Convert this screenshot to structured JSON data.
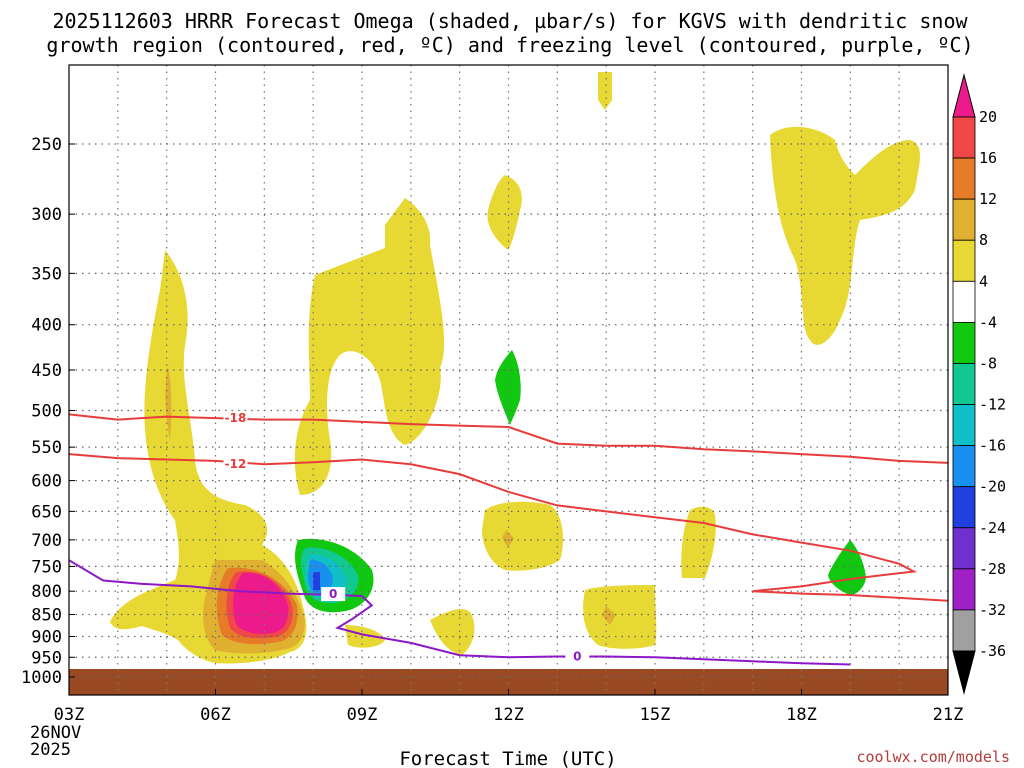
{
  "title": {
    "line1": "2025112603 HRRR Forecast Omega (shaded, µbar/s) for KGVS with dendritic snow",
    "line2": "growth region (contoured, red, ºC) and freezing level (contoured, purple, ºC)"
  },
  "credit": "coolwx.com/models",
  "colors": {
    "omega_4_8": "#e8d833",
    "omega_8_12": "#e0b030",
    "omega_12_16": "#e67c28",
    "omega_16_20": "#f04848",
    "omega_gt_20": "#ec1a8a",
    "omega_m4_m8": "#10c810",
    "omega_m8_m12": "#10c890",
    "omega_m12_m16": "#10c0c8",
    "omega_m16_m20": "#1890f0",
    "omega_m20_m24": "#2040e0",
    "omega_m24_m28": "#7030d0",
    "omega_m28_m32": "#a020c8",
    "omega_m32_m36": "#a0a0a0",
    "omega_lt_m36": "#000000",
    "dgz_contour": "#e83c3c",
    "freezing_contour": "#8c18c8",
    "ground": "#9a4a22"
  },
  "chart_data": {
    "type": "heatmap",
    "title": "2025112603 HRRR Forecast Omega (shaded, µbar/s) for KGVS with dendritic snow growth region (contoured, red, ºC) and freezing level (contoured, purple, ºC)",
    "xlabel": "Forecast Time (UTC)",
    "ylabel": "",
    "x_ticks": [
      "03Z",
      "06Z",
      "09Z",
      "12Z",
      "15Z",
      "18Z",
      "21Z"
    ],
    "x_start_label": [
      "03Z",
      "26NOV",
      "2025"
    ],
    "y_ticks": [
      250,
      300,
      350,
      400,
      450,
      500,
      550,
      600,
      650,
      700,
      750,
      800,
      850,
      900,
      950,
      1000
    ],
    "ylim": [
      1000,
      200
    ],
    "y_scale": "log-pressure",
    "grid": true,
    "colorbar_levels": [
      20,
      16,
      12,
      8,
      4,
      -4,
      -8,
      -12,
      -16,
      -20,
      -24,
      -28,
      -32,
      -36
    ],
    "contours": [
      {
        "name": "-18",
        "color": "red",
        "points": [
          [
            3,
            505
          ],
          [
            4,
            512
          ],
          [
            5,
            508
          ],
          [
            6,
            510
          ],
          [
            7,
            512
          ],
          [
            8,
            512
          ],
          [
            9,
            515
          ],
          [
            10,
            518
          ],
          [
            11,
            520
          ],
          [
            12,
            522
          ],
          [
            13,
            545
          ],
          [
            14,
            548
          ],
          [
            15,
            548
          ],
          [
            16,
            553
          ],
          [
            17,
            556
          ],
          [
            18,
            560
          ],
          [
            19,
            564
          ],
          [
            20,
            570
          ],
          [
            21,
            573
          ]
        ]
      },
      {
        "name": "-12",
        "color": "red",
        "points": [
          [
            3,
            560
          ],
          [
            4,
            566
          ],
          [
            5,
            568
          ],
          [
            6,
            570
          ],
          [
            7,
            575
          ],
          [
            8,
            572
          ],
          [
            9,
            568
          ],
          [
            10,
            575
          ],
          [
            11,
            590
          ],
          [
            12,
            618
          ],
          [
            13,
            640
          ],
          [
            14,
            650
          ],
          [
            15,
            660
          ],
          [
            16,
            670
          ],
          [
            17,
            690
          ],
          [
            18,
            705
          ],
          [
            19,
            720
          ],
          [
            20,
            745
          ],
          [
            20.3,
            760
          ],
          [
            19,
            775
          ],
          [
            18,
            790
          ],
          [
            17,
            800
          ],
          [
            18,
            805
          ],
          [
            19,
            808
          ],
          [
            21,
            820
          ]
        ]
      },
      {
        "name": "0",
        "color": "purple",
        "points": [
          [
            3,
            738
          ],
          [
            3.7,
            778
          ],
          [
            4.5,
            785
          ],
          [
            5.5,
            790
          ],
          [
            6.5,
            800
          ],
          [
            7.5,
            805
          ],
          [
            8.5,
            808
          ],
          [
            9,
            810
          ],
          [
            9.2,
            830
          ],
          [
            8.8,
            860
          ],
          [
            8.5,
            880
          ],
          [
            9,
            895
          ],
          [
            9.5,
            905
          ],
          [
            10,
            915
          ],
          [
            11,
            945
          ],
          [
            12,
            950
          ],
          [
            13,
            948
          ],
          [
            14,
            948
          ],
          [
            15,
            950
          ],
          [
            16,
            955
          ],
          [
            17,
            960
          ],
          [
            18,
            965
          ],
          [
            19,
            968
          ]
        ]
      }
    ],
    "regions": [
      {
        "level": "4 to 8",
        "hours": [
          3.8,
          6.5
        ],
        "pressure": [
          330,
          970
        ]
      },
      {
        "level": "8 to 12",
        "hours": [
          4.9,
          5.1
        ],
        "pressure": [
          450,
          530
        ]
      },
      {
        "level": "gt 20",
        "hours": [
          6.2,
          7.9
        ],
        "pressure": [
          740,
          880
        ]
      },
      {
        "level": "4 to 8",
        "hours": [
          7.6,
          10.2
        ],
        "pressure": [
          290,
          560
        ]
      },
      {
        "level": "-4 to -8",
        "hours": [
          7.7,
          9.3
        ],
        "pressure": [
          700,
          850
        ]
      },
      {
        "level": "-20 to -24",
        "hours": [
          7.9,
          8.1
        ],
        "pressure": [
          760,
          790
        ]
      },
      {
        "level": "4 to 8",
        "hours": [
          11.6,
          12.4
        ],
        "pressure": [
          260,
          330
        ]
      },
      {
        "level": "-4 to -8",
        "hours": [
          11.8,
          12.3
        ],
        "pressure": [
          430,
          520
        ]
      },
      {
        "level": "4 to 8",
        "hours": [
          11.5,
          13.1
        ],
        "pressure": [
          620,
          750
        ]
      },
      {
        "level": "4 to 8",
        "hours": [
          13.5,
          15.0
        ],
        "pressure": [
          780,
          900
        ]
      },
      {
        "level": "4 to 8",
        "hours": [
          15.5,
          16.3
        ],
        "pressure": [
          640,
          780
        ]
      },
      {
        "level": "4 to 8",
        "hours": [
          18.0,
          20.5
        ],
        "pressure": [
          230,
          430
        ]
      },
      {
        "level": "-4 to -8",
        "hours": [
          18.5,
          19.3
        ],
        "pressure": [
          700,
          800
        ]
      }
    ]
  }
}
